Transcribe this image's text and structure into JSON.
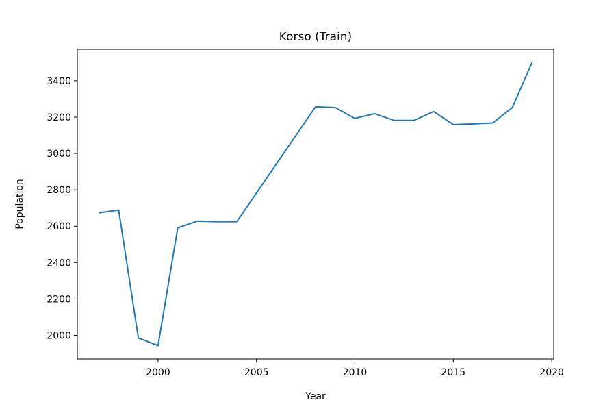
{
  "chart_data": {
    "type": "line",
    "title": "Korso (Train)",
    "x_label": "Year",
    "y_label": "Population",
    "x": [
      1997,
      1998,
      1999,
      2000,
      2001,
      2002,
      2003,
      2004,
      2005,
      2006,
      2007,
      2008,
      2009,
      2010,
      2011,
      2012,
      2013,
      2014,
      2015,
      2016,
      2017,
      2018,
      2019
    ],
    "series": [
      {
        "name": "Population",
        "color": "#1f77b4",
        "values": [
          2674,
          2689,
          1985,
          1944,
          2591,
          2628,
          2625,
          2625,
          2783,
          2941,
          3099,
          3257,
          3253,
          3193,
          3219,
          3182,
          3182,
          3231,
          3159,
          3163,
          3168,
          3253,
          3501
        ]
      }
    ],
    "xlim": [
      1995.9,
      2020.1
    ],
    "xticks": [
      2000,
      2005,
      2010,
      2015,
      2020
    ],
    "ylim": [
      1870,
      3573
    ],
    "yticks": [
      2000,
      2200,
      2400,
      2600,
      2800,
      3000,
      3200,
      3400
    ],
    "grid": false
  }
}
